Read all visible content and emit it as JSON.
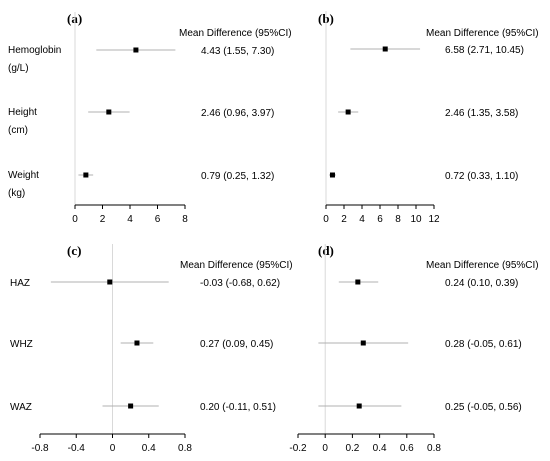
{
  "chart_data": [
    {
      "type": "forest",
      "panel_label": "(a)",
      "header": "Mean Difference (95%CI)",
      "xlim": [
        0,
        8
      ],
      "ticks": [
        0,
        2,
        4,
        6,
        8
      ],
      "tick_labels": [
        "0",
        "2",
        "4",
        "6",
        "8"
      ],
      "rows": [
        {
          "label_lines": [
            "Hemoglobin",
            "(g/L)"
          ],
          "estimate": 4.43,
          "lower": 1.55,
          "upper": 7.3,
          "ci_text": "4.43 (1.55, 7.30)"
        },
        {
          "label_lines": [
            "Height",
            "(cm)"
          ],
          "estimate": 2.46,
          "lower": 0.96,
          "upper": 3.97,
          "ci_text": "2.46 (0.96, 3.97)"
        },
        {
          "label_lines": [
            "Weight",
            "(kg)"
          ],
          "estimate": 0.79,
          "lower": 0.25,
          "upper": 1.32,
          "ci_text": "0.79 (0.25, 1.32)"
        }
      ]
    },
    {
      "type": "forest",
      "panel_label": "(b)",
      "header": "Mean Difference (95%CI)",
      "xlim": [
        0,
        12
      ],
      "ticks": [
        0,
        2,
        4,
        6,
        8,
        10,
        12
      ],
      "tick_labels": [
        "0",
        "2",
        "4",
        "6",
        "8",
        "10",
        "12"
      ],
      "rows": [
        {
          "label_lines": [],
          "estimate": 6.58,
          "lower": 2.71,
          "upper": 10.45,
          "ci_text": "6.58 (2.71, 10.45)"
        },
        {
          "label_lines": [],
          "estimate": 2.46,
          "lower": 1.35,
          "upper": 3.58,
          "ci_text": "2.46 (1.35, 3.58)"
        },
        {
          "label_lines": [],
          "estimate": 0.72,
          "lower": 0.33,
          "upper": 1.1,
          "ci_text": "0.72 (0.33, 1.10)"
        }
      ]
    },
    {
      "type": "forest",
      "panel_label": "(c)",
      "header": "Mean Difference (95%CI)",
      "xlim": [
        -0.8,
        0.8
      ],
      "ticks": [
        -0.8,
        -0.4,
        0,
        0.4,
        0.8
      ],
      "tick_labels": [
        "-0.8",
        "-0.4",
        "0",
        "0.4",
        "0.8"
      ],
      "rows": [
        {
          "label_lines": [
            "HAZ"
          ],
          "estimate": -0.03,
          "lower": -0.68,
          "upper": 0.62,
          "ci_text": "-0.03 (-0.68, 0.62)"
        },
        {
          "label_lines": [
            "WHZ"
          ],
          "estimate": 0.27,
          "lower": 0.09,
          "upper": 0.45,
          "ci_text": "0.27 (0.09, 0.45)"
        },
        {
          "label_lines": [
            "WAZ"
          ],
          "estimate": 0.2,
          "lower": -0.11,
          "upper": 0.51,
          "ci_text": "0.20 (-0.11, 0.51)"
        }
      ]
    },
    {
      "type": "forest",
      "panel_label": "(d)",
      "header": "Mean Difference (95%CI)",
      "xlim": [
        -0.2,
        0.8
      ],
      "ticks": [
        -0.2,
        0,
        0.2,
        0.4,
        0.6,
        0.8
      ],
      "tick_labels": [
        "-0.2",
        "0",
        "0.2",
        "0.4",
        "0.6",
        "0.8"
      ],
      "rows": [
        {
          "label_lines": [],
          "estimate": 0.24,
          "lower": 0.1,
          "upper": 0.39,
          "ci_text": "0.24 (0.10, 0.39)"
        },
        {
          "label_lines": [],
          "estimate": 0.28,
          "lower": -0.05,
          "upper": 0.61,
          "ci_text": "0.28 (-0.05, 0.61)"
        },
        {
          "label_lines": [],
          "estimate": 0.25,
          "lower": -0.05,
          "upper": 0.56,
          "ci_text": "0.25 (-0.05, 0.56)"
        }
      ]
    }
  ]
}
